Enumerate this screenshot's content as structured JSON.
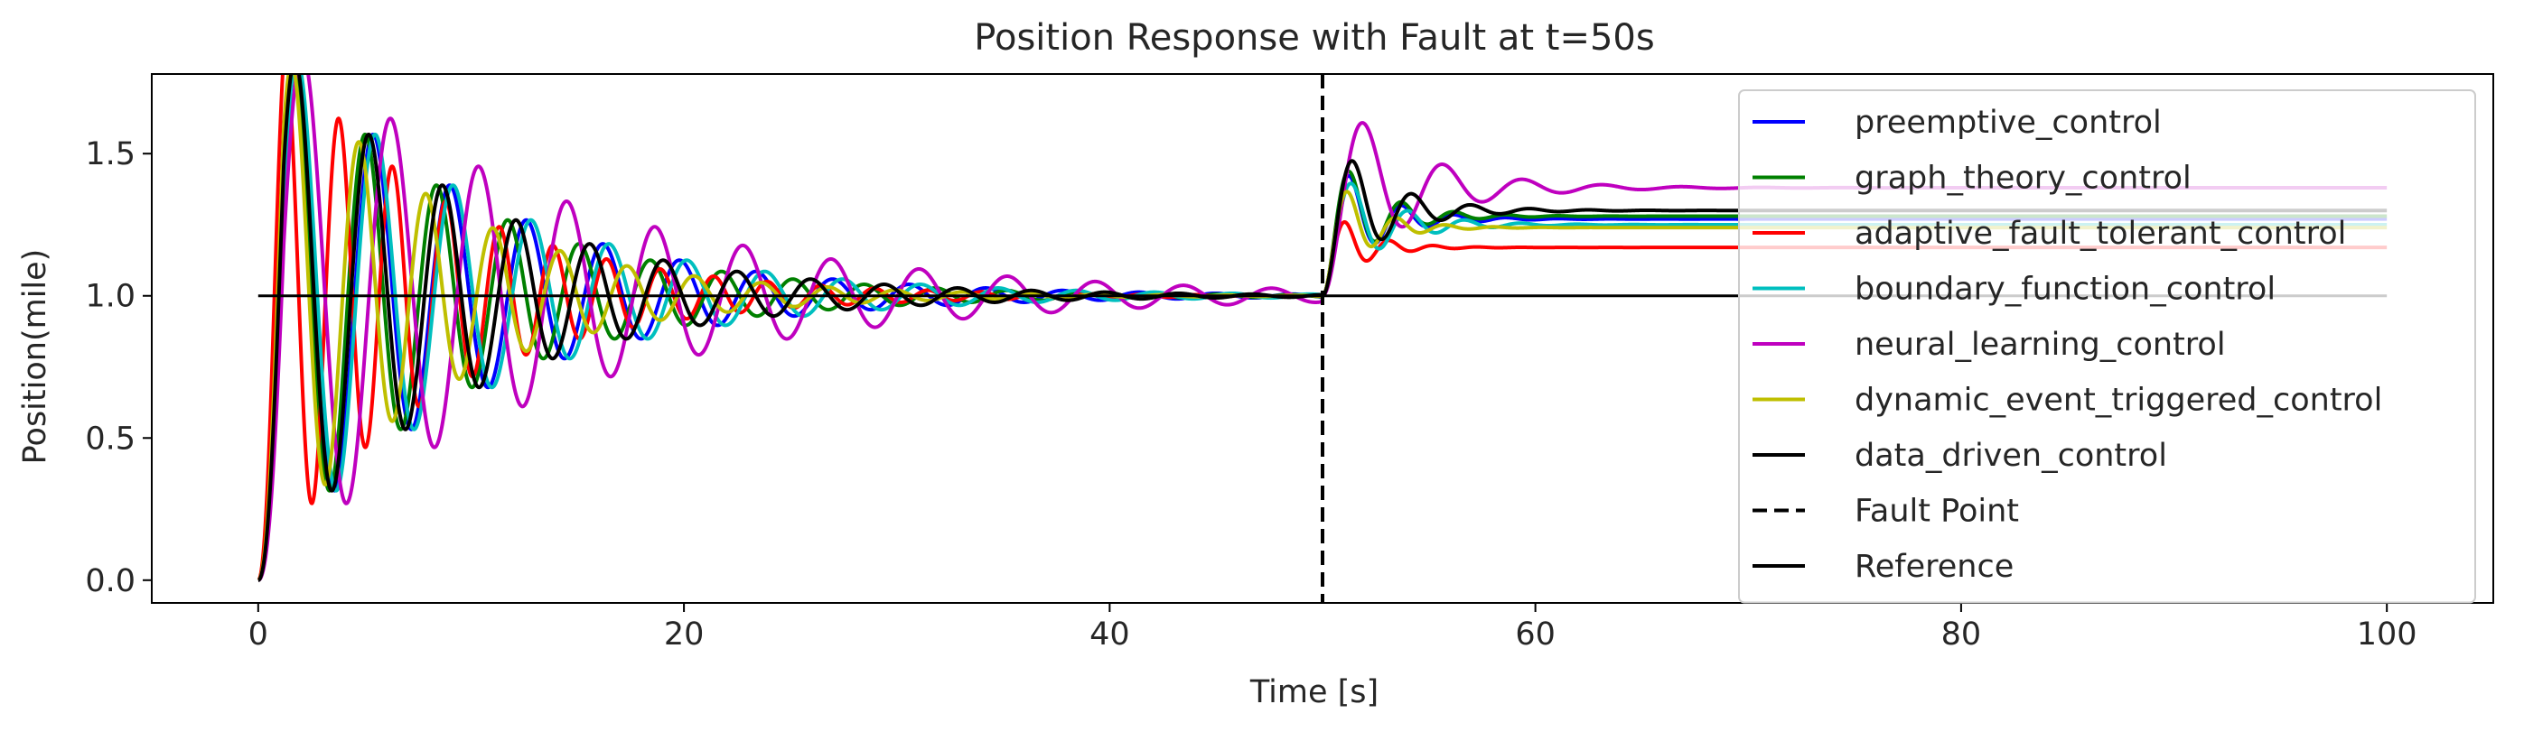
{
  "chart_data": {
    "type": "line",
    "title": "Position Response with Fault at t=50s",
    "xlabel": "Time [s]",
    "ylabel": "Position(mile)",
    "xlim": [
      -5,
      105
    ],
    "ylim": [
      -0.08,
      1.78
    ],
    "xticks": [
      0,
      20,
      40,
      60,
      80,
      100
    ],
    "xtick_labels": [
      "0",
      "20",
      "40",
      "60",
      "80",
      "100"
    ],
    "yticks": [
      0.0,
      0.5,
      1.0,
      1.5
    ],
    "ytick_labels": [
      "0.0",
      "0.5",
      "1.0",
      "1.5"
    ],
    "grid": false,
    "legend_position": "top-right",
    "fault_time": 50,
    "series": [
      {
        "name": "preemptive_control",
        "color": "#0000ff",
        "params": {
          "A1": 0.7,
          "z1": 0.06,
          "w1": 1.75,
          "A2": 0.3,
          "z2": 0.18,
          "w2": 2.6,
          "final": 1.27
        }
      },
      {
        "name": "graph_theory_control",
        "color": "#008000",
        "params": {
          "A1": 0.68,
          "z1": 0.06,
          "w1": 1.88,
          "A2": 0.33,
          "z2": 0.18,
          "w2": 2.6,
          "final": 1.28
        }
      },
      {
        "name": "adaptive_fault_tolerant_control",
        "color": "#ff0000",
        "params": {
          "A1": 0.75,
          "z1": 0.05,
          "w1": 2.5,
          "A2": 0.3,
          "z2": 0.2,
          "w2": 3.1,
          "final": 1.17
        }
      },
      {
        "name": "boundary_function_control",
        "color": "#00bfbf",
        "params": {
          "A1": 0.7,
          "z1": 0.06,
          "w1": 1.72,
          "A2": 0.27,
          "z2": 0.17,
          "w2": 2.4,
          "final": 1.25
        }
      },
      {
        "name": "neural_learning_control",
        "color": "#bf00bf",
        "params": {
          "A1": 0.72,
          "z1": 0.05,
          "w1": 1.52,
          "A2": 0.3,
          "z2": 0.16,
          "w2": 1.7,
          "final": 1.38
        }
      },
      {
        "name": "dynamic_event_triggered_control",
        "color": "#bfbf00",
        "params": {
          "A1": 0.66,
          "z1": 0.065,
          "w1": 2.0,
          "A2": 0.3,
          "z2": 0.2,
          "w2": 2.8,
          "final": 1.24
        }
      },
      {
        "name": "data_driven_control",
        "color": "#000000",
        "params": {
          "A1": 0.7,
          "z1": 0.06,
          "w1": 1.82,
          "A2": 0.3,
          "z2": 0.17,
          "w2": 2.3,
          "final": 1.3
        }
      }
    ],
    "fault_line": {
      "name": "Fault Point",
      "x": 50,
      "color": "#000000"
    },
    "reference": {
      "name": "Reference",
      "value": 1.0,
      "x_range": [
        0,
        100
      ],
      "color": "#000000"
    }
  }
}
